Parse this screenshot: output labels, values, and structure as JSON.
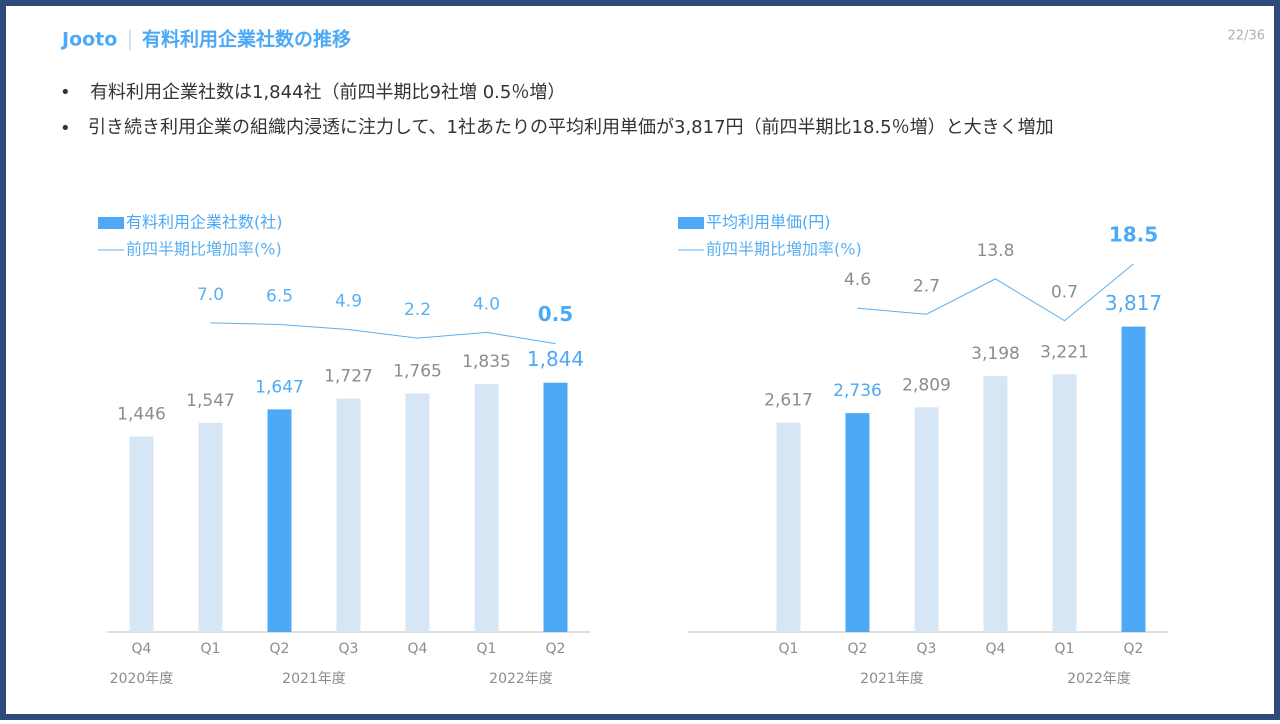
{
  "header": {
    "brand": "Jooto",
    "title": "有料利用企業社数の推移",
    "page": "22/36"
  },
  "bullets": [
    "有料利用企業社数は1,844社（前四半期比9社増 0.5％増）",
    "引き続き利用企業の組織内浸透に注力して、1社あたりの平均利用単価が3,817円（前四半期比18.5％増）と大きく増加"
  ],
  "chart_data": [
    {
      "type": "bar_line",
      "categories": [
        "Q4",
        "Q1",
        "Q2",
        "Q3",
        "Q4",
        "Q1",
        "Q2"
      ],
      "groups": [
        "2020年度",
        "2021年度",
        "2021年度",
        "2021年度",
        "2021年度",
        "2022年度",
        "2022年度"
      ],
      "ylim": [
        0,
        2900
      ],
      "y2lim": [
        -90,
        33
      ],
      "series": [
        {
          "name": "有料利用企業社数(社)",
          "color": "#4da9f5",
          "colors": [
            "#d7e6f4",
            "#d7e6f4",
            "#4da9f5",
            "#d7e6f4",
            "#d7e6f4",
            "#d7e6f4",
            "#4da9f5"
          ],
          "label_colors": [
            "#8c8c8c",
            "#8c8c8c",
            "#4da9f5",
            "#8c8c8c",
            "#8c8c8c",
            "#8c8c8c",
            "#4da9f5"
          ],
          "values": [
            1446,
            1547,
            1647,
            1727,
            1765,
            1835,
            1844
          ],
          "value_labels": [
            "1,446",
            "1,547",
            "1,647",
            "1,727",
            "1,765",
            "1,835",
            "1,844"
          ]
        },
        {
          "name": "前四半期比増加率(%)",
          "color": "#5bb0f0",
          "axis": "y2",
          "label_colors": [
            null,
            "#5bb0f0",
            "#5bb0f0",
            "#5bb0f0",
            "#5bb0f0",
            "#5bb0f0",
            "#4da9f5"
          ],
          "values": [
            null,
            7.0,
            6.5,
            4.9,
            2.2,
            4.0,
            0.5
          ],
          "value_labels": [
            null,
            "7.0",
            "6.5",
            "4.9",
            "2.2",
            "4.0",
            "0.5"
          ]
        }
      ]
    },
    {
      "type": "bar_line",
      "categories": [
        "Q1",
        "Q2",
        "Q3",
        "Q4",
        "Q1",
        "Q2"
      ],
      "groups": [
        "2021年度",
        "2021年度",
        "2021年度",
        "2021年度",
        "2022年度",
        "2022年度"
      ],
      "ylim": [
        0,
        4900
      ],
      "y2lim": [
        -97,
        26
      ],
      "series": [
        {
          "name": "平均利用単価(円)",
          "color": "#4da9f5",
          "colors": [
            "#d7e6f4",
            "#4da9f5",
            "#d7e6f4",
            "#d7e6f4",
            "#d7e6f4",
            "#4da9f5"
          ],
          "label_colors": [
            "#8c8c8c",
            "#4da9f5",
            "#8c8c8c",
            "#8c8c8c",
            "#8c8c8c",
            "#4da9f5"
          ],
          "values": [
            2617,
            2736,
            2809,
            3198,
            3221,
            3817
          ],
          "value_labels": [
            "2,617",
            "2,736",
            "2,809",
            "3,198",
            "3,221",
            "3,817"
          ]
        },
        {
          "name": "前四半期比増加率(%)",
          "color": "#5bb0f0",
          "axis": "y2",
          "label_colors": [
            null,
            "#8c8c8c",
            "#8c8c8c",
            "#8c8c8c",
            "#8c8c8c",
            "#4da9f5"
          ],
          "values": [
            null,
            4.6,
            2.7,
            13.8,
            0.7,
            18.5
          ],
          "value_labels": [
            null,
            "4.6",
            "2.7",
            "13.8",
            "0.7",
            "18.5"
          ]
        }
      ]
    }
  ]
}
